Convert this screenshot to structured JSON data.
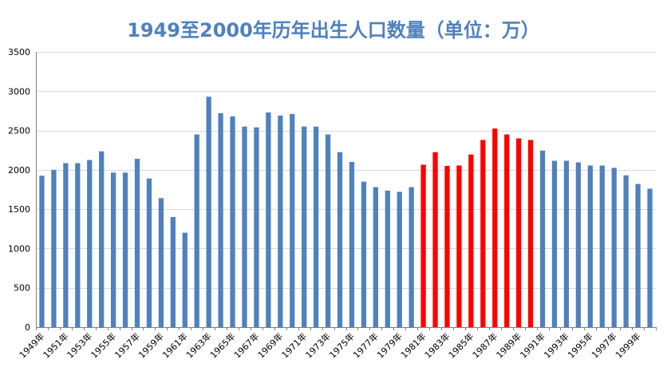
{
  "chart_data": {
    "type": "bar",
    "title": "1949至2000年历年出生人口数量（单位：万）",
    "xlabel": "",
    "ylabel": "",
    "ylim": [
      0,
      3500
    ],
    "yticks": [
      0,
      500,
      1000,
      1500,
      2000,
      2500,
      3000,
      3500
    ],
    "grid": true,
    "legend": "none",
    "categories": [
      "1949年",
      "1950年",
      "1951年",
      "1952年",
      "1953年",
      "1954年",
      "1955年",
      "1956年",
      "1957年",
      "1958年",
      "1959年",
      "1960年",
      "1961年",
      "1962年",
      "1963年",
      "1964年",
      "1965年",
      "1966年",
      "1967年",
      "1968年",
      "1969年",
      "1970年",
      "1971年",
      "1972年",
      "1973年",
      "1974年",
      "1975年",
      "1976年",
      "1977年",
      "1978年",
      "1979年",
      "1980年",
      "1981年",
      "1982年",
      "1983年",
      "1984年",
      "1985年",
      "1986年",
      "1987年",
      "1988年",
      "1989年",
      "1990年",
      "1991年",
      "1992年",
      "1993年",
      "1994年",
      "1995年",
      "1996年",
      "1997年",
      "1998年",
      "1999年",
      "2000年"
    ],
    "tick_labels_shown": [
      "1949年",
      "1951年",
      "1953年",
      "1955年",
      "1957年",
      "1959年",
      "1961年",
      "1963年",
      "1965年",
      "1967年",
      "1969年",
      "1971年",
      "1973年",
      "1975年",
      "1977年",
      "1979年",
      "1981年",
      "1983年",
      "1985年",
      "1987年",
      "1989年",
      "1991年",
      "1993年",
      "1995年",
      "1997年",
      "1999年"
    ],
    "values": [
      1925,
      2000,
      2085,
      2085,
      2125,
      2235,
      1965,
      1965,
      2140,
      1890,
      1640,
      1400,
      1200,
      2450,
      2930,
      2720,
      2680,
      2550,
      2540,
      2730,
      2690,
      2710,
      2550,
      2550,
      2450,
      2225,
      2100,
      1850,
      1780,
      1735,
      1720,
      1780,
      2065,
      2225,
      2050,
      2055,
      2195,
      2380,
      2525,
      2450,
      2400,
      2380,
      2245,
      2115,
      2115,
      2095,
      2055,
      2055,
      2025,
      1930,
      1820,
      1760
    ],
    "colors": {
      "default": "#4f81bd",
      "highlight": "#ff0000"
    },
    "highlight_categories": [
      "1981年",
      "1982年",
      "1983年",
      "1984年",
      "1985年",
      "1986年",
      "1987年",
      "1988年",
      "1989年",
      "1990年"
    ]
  }
}
